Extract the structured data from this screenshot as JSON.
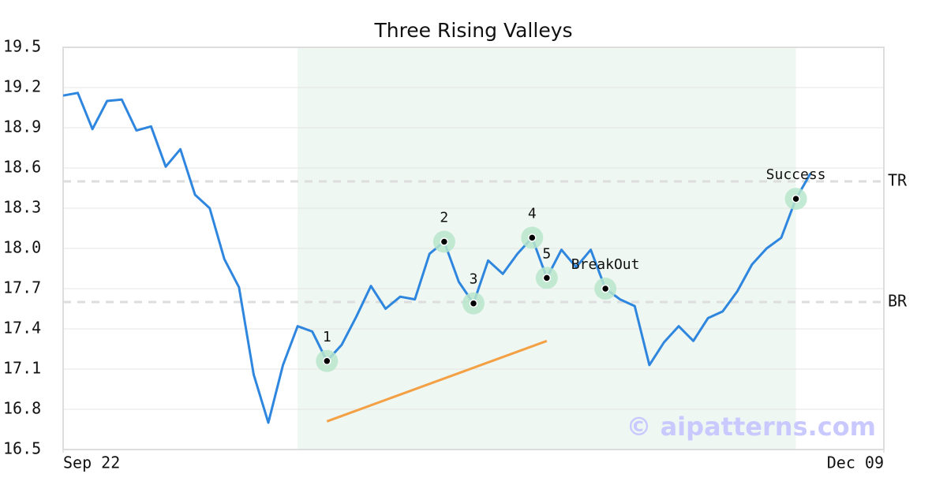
{
  "chart_data": {
    "type": "line",
    "title": "Three Rising Valleys",
    "x": [
      0,
      1,
      2,
      3,
      4,
      5,
      6,
      7,
      8,
      9,
      10,
      11,
      12,
      13,
      14,
      15,
      16,
      17,
      18,
      19,
      20,
      21,
      22,
      23,
      24,
      25,
      26,
      27,
      28,
      29,
      30,
      31,
      32,
      33,
      34,
      35,
      36,
      37,
      38,
      39,
      40,
      41,
      42,
      43,
      44,
      45,
      46,
      47,
      48,
      49,
      50,
      51
    ],
    "series": [
      {
        "color": "#2e86de",
        "values": [
          19.14,
          19.16,
          18.89,
          19.1,
          19.11,
          18.88,
          18.91,
          18.61,
          18.74,
          18.4,
          18.3,
          17.92,
          17.71,
          17.06,
          16.7,
          17.13,
          17.42,
          17.38,
          17.16,
          17.28,
          17.49,
          17.72,
          17.55,
          17.64,
          17.62,
          17.96,
          18.05,
          17.75,
          17.59,
          17.91,
          17.81,
          17.96,
          18.08,
          17.78,
          17.99,
          17.86,
          17.99,
          17.7,
          17.62,
          17.57,
          17.13,
          17.3,
          17.42,
          17.31,
          17.48,
          17.53,
          17.68,
          17.88,
          18.0,
          18.08,
          18.37,
          18.56
        ]
      }
    ],
    "xlim": [
      0,
      56
    ],
    "xticks": [
      {
        "value": 0,
        "label": "Sep 22"
      },
      {
        "value": 56,
        "label": "Dec 09"
      }
    ],
    "ylim": [
      16.5,
      19.5
    ],
    "yticks": [
      16.5,
      16.8,
      17.1,
      17.4,
      17.7,
      {
        "value": 18,
        "label": "18.0"
      },
      18.3,
      18.6,
      18.9,
      19.2,
      19.5
    ],
    "grid": true,
    "shade": {
      "from": 16,
      "to": 50,
      "color": "#eef7f2"
    },
    "hlines": [
      {
        "label": "TR",
        "value": 18.5
      },
      {
        "label": "BR",
        "value": 17.6
      }
    ],
    "annotations": [
      {
        "label": "1",
        "x": 18
      },
      {
        "label": "2",
        "x": 26
      },
      {
        "label": "3",
        "x": 28
      },
      {
        "label": "4",
        "x": 32
      },
      {
        "label": "5",
        "x": 33
      },
      {
        "label": "BreakOut",
        "x": 37
      },
      {
        "label": "Success",
        "x": 50
      }
    ],
    "trendline": {
      "x": [
        18,
        33
      ],
      "y": [
        16.71,
        17.31
      ],
      "color": "#f4a045"
    },
    "watermark": "© aipatterns.com"
  }
}
